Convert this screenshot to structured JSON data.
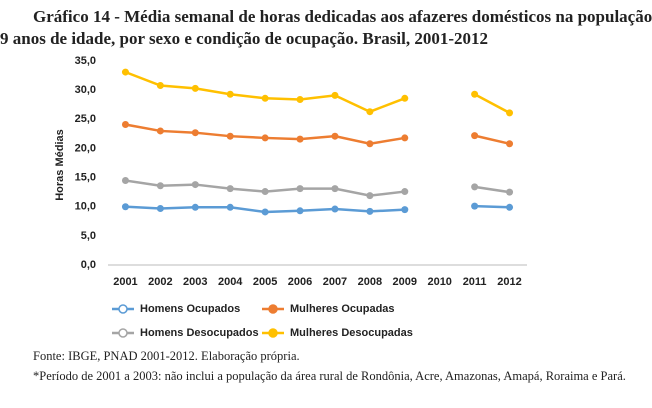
{
  "chart_data": {
    "type": "line",
    "title_lines": [
      "Gráfico 14 - Média semanal de horas dedicadas aos afazeres domésticos na população",
      "9 anos de idade, por sexo e condição de ocupação. Brasil, 2001-2012"
    ],
    "y_label": "Horas Médias",
    "categories": [
      "2001",
      "2002",
      "2003",
      "2004",
      "2005",
      "2006",
      "2007",
      "2008",
      "2009",
      "2010",
      "2011",
      "2012"
    ],
    "ylim": [
      0,
      35
    ],
    "yticks": [
      {
        "value": 0,
        "label": "0,0"
      },
      {
        "value": 5,
        "label": "5,0"
      },
      {
        "value": 10,
        "label": "10,0"
      },
      {
        "value": 15,
        "label": "15,0"
      },
      {
        "value": 20,
        "label": "20,0"
      },
      {
        "value": 25,
        "label": "25,0"
      },
      {
        "value": 30,
        "label": "30,0"
      },
      {
        "value": 35,
        "label": "35,0"
      }
    ],
    "grid": false,
    "series": [
      {
        "name": "Homens Ocupados",
        "color": "#5b9bd5",
        "values": [
          10.0,
          9.7,
          9.9,
          9.9,
          9.1,
          9.3,
          9.6,
          9.2,
          9.5,
          null,
          10.1,
          9.9
        ]
      },
      {
        "name": "Mulheres Ocupadas",
        "color": "#ed7d31",
        "values": [
          24.1,
          23.0,
          22.7,
          22.1,
          21.8,
          21.6,
          22.1,
          20.8,
          21.8,
          null,
          22.2,
          20.8
        ]
      },
      {
        "name": "Homens Desocupados",
        "color": "#a5a5a5",
        "values": [
          14.5,
          13.6,
          13.8,
          13.1,
          12.6,
          13.1,
          13.1,
          11.9,
          12.6,
          null,
          13.4,
          12.5
        ]
      },
      {
        "name": "Mulheres Desocupadas",
        "color": "#ffc000",
        "values": [
          33.1,
          30.8,
          30.3,
          29.3,
          28.6,
          28.4,
          29.1,
          26.3,
          28.6,
          null,
          29.3,
          26.1
        ]
      }
    ],
    "notes": [
      "Fonte: IBGE, PNAD 2001-2012. Elaboração própria.",
      "*Período de 2001 a 2003: não inclui a população da área rural de Rondônia, Acre, Amazonas, Amapá, Roraima e Pará."
    ]
  }
}
